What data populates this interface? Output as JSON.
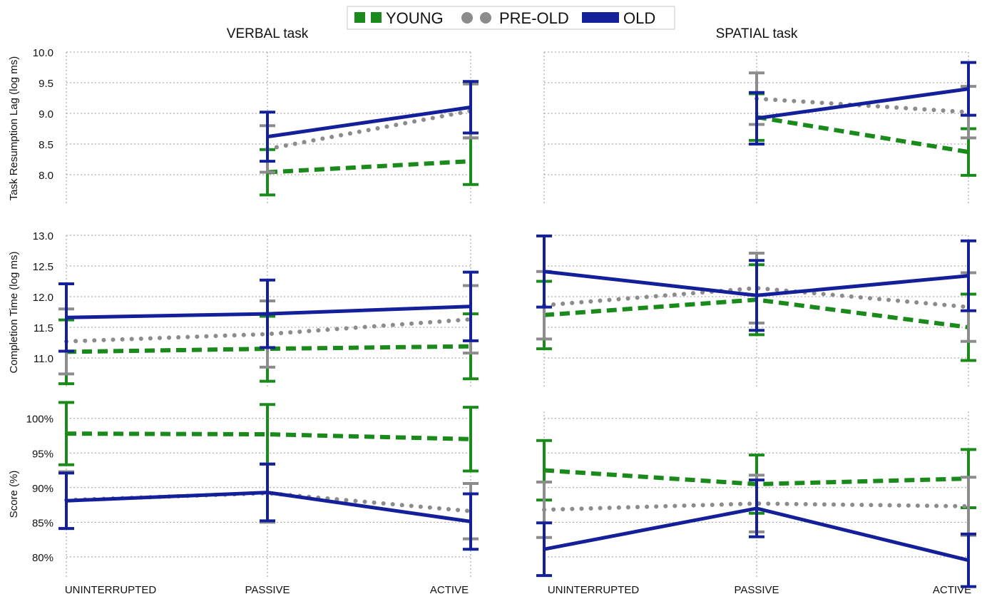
{
  "legend": {
    "items": [
      {
        "key": "young",
        "label": "YOUNG"
      },
      {
        "key": "preold",
        "label": "PRE-OLD"
      },
      {
        "key": "old",
        "label": "OLD"
      }
    ],
    "placement": "top-center"
  },
  "colors": {
    "young": "#1a8a1a",
    "preold": "#8c8c8c",
    "old": "#13209a",
    "grid": "#9a9a9a"
  },
  "column_titles": [
    "VERBAL task",
    "SPATIAL task"
  ],
  "row_labels": [
    "Task Resumption Lag (log ms)",
    "Completion Time (log ms)",
    "Score (%)"
  ],
  "categories": [
    "UNINTERRUPTED",
    "PASSIVE",
    "ACTIVE"
  ],
  "chart_data": [
    {
      "type": "line",
      "task": "VERBAL task",
      "ylabel": "Task Resumption Lag (log ms)",
      "ylim": [
        7.5,
        10.0
      ],
      "yticks": [
        8.0,
        8.5,
        9.0,
        9.5,
        10.0
      ],
      "tick_labels": [
        "8.0",
        "8.5",
        "9.0",
        "9.5",
        "10.0"
      ],
      "grid": true,
      "series": [
        {
          "key": "young",
          "name": "YOUNG",
          "values": [
            null,
            8.04,
            8.22
          ],
          "err": [
            null,
            0.37,
            0.38
          ]
        },
        {
          "key": "preold",
          "name": "PRE-OLD",
          "values": [
            null,
            8.42,
            9.04
          ],
          "err": [
            null,
            0.38,
            0.44
          ]
        },
        {
          "key": "old",
          "name": "OLD",
          "values": [
            null,
            8.62,
            9.1
          ],
          "err": [
            null,
            0.4,
            0.42
          ]
        }
      ]
    },
    {
      "type": "line",
      "task": "SPATIAL task",
      "ylabel": "",
      "ylim": [
        7.5,
        10.0
      ],
      "yticks": [
        8.0,
        8.5,
        9.0,
        9.5,
        10.0
      ],
      "tick_labels": [],
      "grid": true,
      "series": [
        {
          "key": "young",
          "name": "YOUNG",
          "values": [
            null,
            8.94,
            8.37
          ],
          "err": [
            null,
            0.38,
            0.38
          ]
        },
        {
          "key": "preold",
          "name": "PRE-OLD",
          "values": [
            null,
            9.24,
            9.02
          ],
          "err": [
            null,
            0.42,
            0.42
          ]
        },
        {
          "key": "old",
          "name": "OLD",
          "values": [
            null,
            8.92,
            9.4
          ],
          "err": [
            null,
            0.42,
            0.43
          ]
        }
      ]
    },
    {
      "type": "line",
      "task": "VERBAL task",
      "ylabel": "Completion Time (log ms)",
      "ylim": [
        10.5,
        13.0
      ],
      "yticks": [
        11.0,
        11.5,
        12.0,
        12.5,
        13.0
      ],
      "tick_labels": [
        "11.0",
        "11.5",
        "12.0",
        "12.5",
        "13.0"
      ],
      "grid": true,
      "series": [
        {
          "key": "young",
          "name": "YOUNG",
          "values": [
            11.1,
            11.15,
            11.19
          ],
          "err": [
            0.52,
            0.53,
            0.53
          ]
        },
        {
          "key": "preold",
          "name": "PRE-OLD",
          "values": [
            11.27,
            11.39,
            11.63
          ],
          "err": [
            0.53,
            0.54,
            0.55
          ]
        },
        {
          "key": "old",
          "name": "OLD",
          "values": [
            11.66,
            11.72,
            11.84
          ],
          "err": [
            0.55,
            0.55,
            0.56
          ]
        }
      ]
    },
    {
      "type": "line",
      "task": "SPATIAL task",
      "ylabel": "",
      "ylim": [
        10.5,
        13.0
      ],
      "yticks": [
        11.0,
        11.5,
        12.0,
        12.5,
        13.0
      ],
      "tick_labels": [],
      "grid": true,
      "series": [
        {
          "key": "young",
          "name": "YOUNG",
          "values": [
            11.7,
            11.95,
            11.5
          ],
          "err": [
            0.55,
            0.57,
            0.54
          ]
        },
        {
          "key": "preold",
          "name": "PRE-OLD",
          "values": [
            11.86,
            12.14,
            11.83
          ],
          "err": [
            0.55,
            0.57,
            0.56
          ]
        },
        {
          "key": "old",
          "name": "OLD",
          "values": [
            12.41,
            12.02,
            12.34
          ],
          "err": [
            0.58,
            0.57,
            0.57
          ]
        }
      ]
    },
    {
      "type": "line",
      "task": "VERBAL task",
      "ylabel": "Score (%)",
      "ylim": [
        77,
        101
      ],
      "yticks": [
        80,
        85,
        90,
        95,
        100
      ],
      "tick_labels": [
        "80%",
        "85%",
        "90%",
        "95%",
        "100%"
      ],
      "grid": true,
      "series": [
        {
          "key": "young",
          "name": "YOUNG",
          "values": [
            97.8,
            97.7,
            97.0
          ],
          "err": [
            4.5,
            4.3,
            4.6
          ]
        },
        {
          "key": "preold",
          "name": "PRE-OLD",
          "values": [
            88.2,
            89.2,
            86.6
          ],
          "err": [
            4.1,
            4.2,
            4.0
          ]
        },
        {
          "key": "old",
          "name": "OLD",
          "values": [
            88.1,
            89.3,
            85.1
          ],
          "err": [
            4.0,
            4.1,
            4.0
          ]
        }
      ]
    },
    {
      "type": "line",
      "task": "SPATIAL task",
      "ylabel": "",
      "ylim": [
        77,
        101
      ],
      "yticks": [
        80,
        85,
        90,
        95,
        100
      ],
      "tick_labels": [],
      "grid": true,
      "series": [
        {
          "key": "young",
          "name": "YOUNG",
          "values": [
            92.5,
            90.5,
            91.3
          ],
          "err": [
            4.3,
            4.2,
            4.2
          ]
        },
        {
          "key": "preold",
          "name": "PRE-OLD",
          "values": [
            86.8,
            87.7,
            87.3
          ],
          "err": [
            4.0,
            4.1,
            4.2
          ]
        },
        {
          "key": "old",
          "name": "OLD",
          "values": [
            81.1,
            87.0,
            79.5
          ],
          "err": [
            3.8,
            4.1,
            3.8
          ]
        }
      ]
    }
  ]
}
